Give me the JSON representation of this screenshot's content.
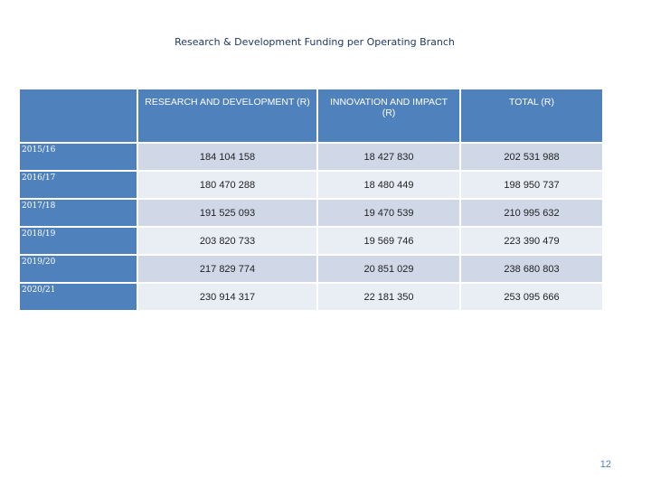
{
  "title": "Research & Development Funding per Operating Branch",
  "table": {
    "headers": [
      "",
      "RESEARCH AND DEVELOPMENT (R)",
      "INNOVATION AND IMPACT (R)",
      "TOTAL (R)"
    ],
    "rows": [
      {
        "year": "2015/16",
        "rd": "184 104 158",
        "ii": "18 427 830",
        "total": "202 531 988"
      },
      {
        "year": "2016/17",
        "rd": "180 470 288",
        "ii": "18 480 449",
        "total": "198 950 737"
      },
      {
        "year": "2017/18",
        "rd": "191 525 093",
        "ii": "19 470 539",
        "total": "210 995 632"
      },
      {
        "year": "2018/19",
        "rd": "203 820 733",
        "ii": "19 569 746",
        "total": "223 390 479"
      },
      {
        "year": "2019/20",
        "rd": "217 829 774",
        "ii": "20 851 029",
        "total": "238 680 803"
      },
      {
        "year": "2020/21",
        "rd": "230 914 317",
        "ii": "22 181 350",
        "total": "253 095 666"
      }
    ]
  },
  "page_number": "12",
  "colors": {
    "header": "#4f81bd",
    "row_odd": "#d0d8e8",
    "row_even": "#e9edf4",
    "title": "#1f3864"
  }
}
